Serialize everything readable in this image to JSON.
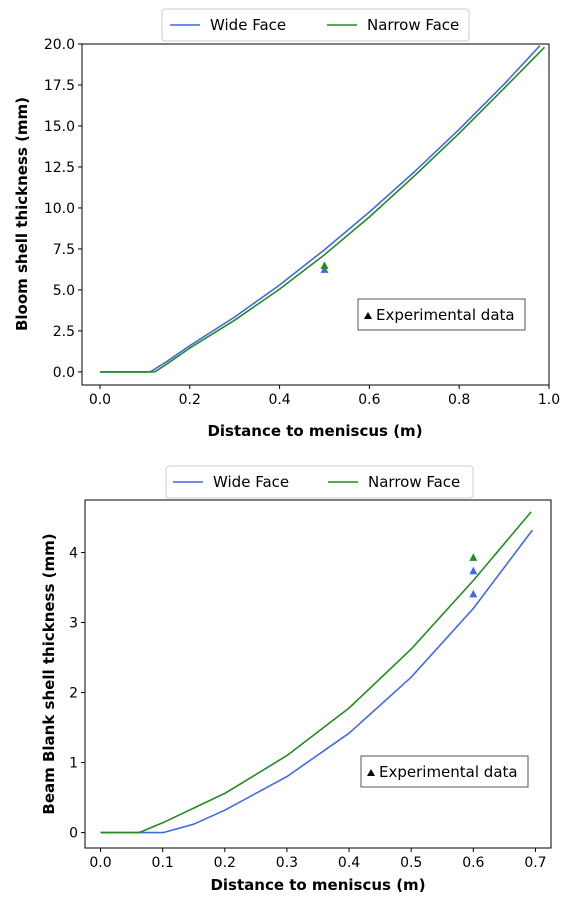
{
  "chart_data": [
    {
      "type": "line",
      "xlabel": "Distance to meniscus (m)",
      "ylabel": "Bloom shell thickness (mm)",
      "xlim": [
        -0.04,
        1.0
      ],
      "ylim": [
        -0.8,
        20.0
      ],
      "xticks": [
        "0.0",
        "0.2",
        "0.4",
        "0.6",
        "0.8",
        "1.0"
      ],
      "yticks": [
        "0.0",
        "2.5",
        "5.0",
        "7.5",
        "10.0",
        "12.5",
        "15.0",
        "17.5",
        "20.0"
      ],
      "legend": {
        "placement": "upper center, outside",
        "entries": [
          "Wide Face",
          "Narrow Face"
        ]
      },
      "series": [
        {
          "name": "Wide Face",
          "color": "#4169e1",
          "x": [
            0.0,
            0.11,
            0.115,
            0.15,
            0.2,
            0.3,
            0.4,
            0.5,
            0.6,
            0.7,
            0.8,
            0.9,
            0.98
          ],
          "y": [
            0.0,
            0.0,
            0.05,
            0.65,
            1.6,
            3.35,
            5.3,
            7.45,
            9.75,
            12.2,
            14.8,
            17.55,
            19.9
          ]
        },
        {
          "name": "Narrow Face",
          "color": "#228b22",
          "x": [
            0.0,
            0.12,
            0.125,
            0.15,
            0.2,
            0.3,
            0.4,
            0.5,
            0.6,
            0.7,
            0.8,
            0.9,
            0.99
          ],
          "y": [
            0.0,
            0.0,
            0.05,
            0.5,
            1.45,
            3.15,
            5.05,
            7.15,
            9.45,
            11.95,
            14.55,
            17.3,
            19.8
          ]
        }
      ],
      "experimental": {
        "label": "Experimental data",
        "points": [
          {
            "x": 0.5,
            "y": 6.25,
            "color": "#4169e1"
          },
          {
            "x": 0.5,
            "y": 6.5,
            "color": "#228b22"
          }
        ]
      }
    },
    {
      "type": "line",
      "xlabel": "Distance to meniscus (m)",
      "ylabel": "Beam Blank shell thickness (mm)",
      "xlim": [
        -0.025,
        0.725
      ],
      "ylim": [
        -0.22,
        4.75
      ],
      "xticks": [
        "0.0",
        "0.1",
        "0.2",
        "0.3",
        "0.4",
        "0.5",
        "0.6",
        "0.7"
      ],
      "yticks": [
        "0",
        "1",
        "2",
        "3",
        "4"
      ],
      "legend": {
        "placement": "upper center, outside",
        "entries": [
          "Wide Face",
          "Narrow Face"
        ]
      },
      "series": [
        {
          "name": "Wide Face",
          "color": "#4169e1",
          "x": [
            0.0,
            0.1,
            0.105,
            0.15,
            0.2,
            0.3,
            0.4,
            0.5,
            0.6,
            0.695
          ],
          "y": [
            0.0,
            0.0,
            0.01,
            0.12,
            0.32,
            0.8,
            1.42,
            2.22,
            3.2,
            4.32
          ]
        },
        {
          "name": "Narrow Face",
          "color": "#228b22",
          "x": [
            0.0,
            0.06,
            0.065,
            0.1,
            0.2,
            0.3,
            0.4,
            0.5,
            0.6,
            0.693
          ],
          "y": [
            0.0,
            0.0,
            0.01,
            0.14,
            0.56,
            1.1,
            1.78,
            2.62,
            3.6,
            4.58
          ]
        }
      ],
      "experimental": {
        "label": "Experimental data",
        "points": [
          {
            "x": 0.6,
            "y": 3.93,
            "color": "#228b22"
          },
          {
            "x": 0.6,
            "y": 3.74,
            "color": "#4169e1"
          },
          {
            "x": 0.6,
            "y": 3.41,
            "color": "#4169e1"
          }
        ]
      }
    }
  ]
}
